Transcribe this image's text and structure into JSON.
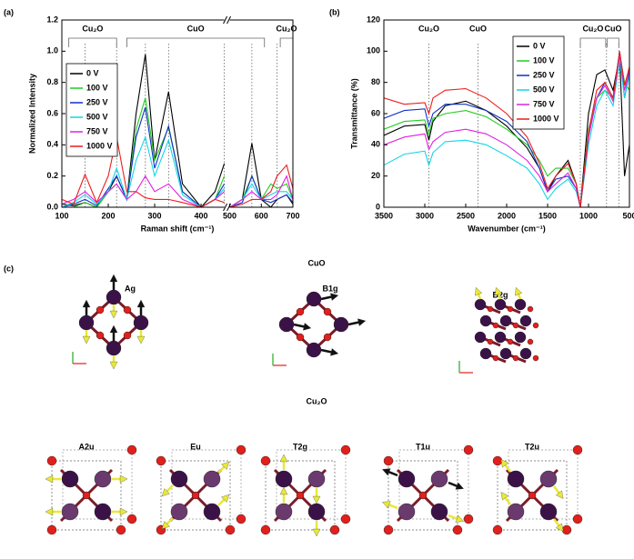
{
  "chart_data": [
    {
      "type": "line",
      "panel": "(a)",
      "x_label": "Raman shift (cm⁻¹)",
      "y_label": "Normalized Intensity",
      "xlim": [
        100,
        700
      ],
      "xbreak": [
        450,
        500
      ],
      "xticks": [
        100,
        200,
        300,
        400,
        500,
        600,
        700
      ],
      "ylim": [
        0,
        1.2
      ],
      "yticks": [
        {
          "value": 0,
          "label": "0.0"
        },
        {
          "value": 0.2,
          "label": "0.2"
        },
        {
          "value": 0.4,
          "label": "0.4"
        },
        {
          "value": 0.6,
          "label": "0.6"
        },
        {
          "value": 0.8,
          "label": "0.8"
        },
        {
          "value": 1.0,
          "label": "1.0"
        },
        {
          "value": 1.2,
          "label": "1.2"
        }
      ],
      "legend_loc": "upper left",
      "reference_lines": [
        150,
        218,
        280,
        330,
        450,
        570,
        650
      ],
      "annotations": [
        {
          "text": "Cu₂O",
          "span": [
            115,
            218
          ]
        },
        {
          "text": "CuO",
          "span": [
            240,
            610
          ]
        },
        {
          "text": "Cu₂O",
          "span": [
            660,
            700
          ]
        }
      ],
      "x": [
        100,
        125,
        150,
        175,
        200,
        218,
        240,
        260,
        280,
        300,
        330,
        360,
        400,
        430,
        450,
        500,
        540,
        570,
        600,
        630,
        650,
        680,
        700
      ],
      "series": [
        {
          "name": "0 V",
          "color": "#000000",
          "values": [
            0.02,
            0.01,
            0.03,
            0.0,
            0.1,
            0.2,
            0.05,
            0.6,
            0.98,
            0.3,
            0.74,
            0.15,
            0.0,
            0.1,
            0.28,
            0.0,
            0.05,
            0.41,
            0.05,
            0.0,
            0.05,
            0.08,
            0.02
          ]
        },
        {
          "name": "100 V",
          "color": "#22cc22",
          "values": [
            0.0,
            0.0,
            0.03,
            0.0,
            0.1,
            0.15,
            0.05,
            0.5,
            0.7,
            0.3,
            0.51,
            0.1,
            0.0,
            0.05,
            0.2,
            0.0,
            0.05,
            0.2,
            0.05,
            0.15,
            0.12,
            0.15,
            0.05
          ]
        },
        {
          "name": "250 V",
          "color": "#1030c8",
          "values": [
            0.0,
            0.02,
            0.05,
            0.01,
            0.12,
            0.2,
            0.05,
            0.45,
            0.64,
            0.25,
            0.52,
            0.1,
            0.0,
            0.05,
            0.15,
            0.0,
            0.03,
            0.2,
            0.05,
            0.03,
            0.05,
            0.08,
            0.03
          ]
        },
        {
          "name": "500 V",
          "color": "#11d6e6",
          "values": [
            0.0,
            0.03,
            0.08,
            0.02,
            0.1,
            0.25,
            0.05,
            0.3,
            0.45,
            0.2,
            0.43,
            0.08,
            0.0,
            0.05,
            0.12,
            0.0,
            0.05,
            0.15,
            0.05,
            0.08,
            0.1,
            0.1,
            0.05
          ]
        },
        {
          "name": "750 V",
          "color": "#e020e0",
          "values": [
            0.02,
            0.05,
            0.1,
            0.03,
            0.1,
            0.15,
            0.05,
            0.1,
            0.2,
            0.1,
            0.15,
            0.05,
            0.0,
            0.05,
            0.1,
            0.0,
            0.05,
            0.1,
            0.05,
            0.05,
            0.08,
            0.2,
            0.05
          ]
        },
        {
          "name": "1000 V",
          "color": "#ee1c1c",
          "values": [
            0.05,
            0.02,
            0.21,
            0.03,
            0.2,
            0.45,
            0.1,
            0.1,
            0.06,
            0.05,
            0.05,
            0.03,
            0.0,
            0.05,
            0.03,
            0.0,
            0.02,
            0.05,
            0.05,
            0.1,
            0.2,
            0.27,
            0.12
          ]
        }
      ]
    },
    {
      "type": "line",
      "panel": "(b)",
      "x_label": "Wavenumber (cm⁻¹)",
      "y_label": "Transmittance (%)",
      "xlim": [
        3500,
        500
      ],
      "xticks": [
        3500,
        3000,
        2500,
        2000,
        1500,
        1000,
        500
      ],
      "ylim": [
        0,
        120
      ],
      "yticks": [
        0,
        20,
        40,
        60,
        80,
        100,
        120
      ],
      "legend_loc": "upper right",
      "reference_lines": [
        2950,
        2350,
        1100,
        780,
        630
      ],
      "annotations": [
        {
          "text": "Cu₂O",
          "span": [
            2950,
            2950
          ]
        },
        {
          "text": "CuO",
          "span": [
            2350,
            2350
          ]
        },
        {
          "text": "Cu₂O",
          "span": [
            1100,
            790
          ]
        },
        {
          "text": "CuO",
          "span": [
            770,
            630
          ]
        }
      ],
      "x": [
        3500,
        3250,
        3000,
        2950,
        2900,
        2750,
        2500,
        2250,
        2000,
        1750,
        1600,
        1500,
        1400,
        1250,
        1150,
        1100,
        1000,
        900,
        800,
        700,
        620,
        560,
        500
      ],
      "series": [
        {
          "name": "0 V",
          "color": "#000000",
          "values": [
            46,
            52,
            53,
            43,
            55,
            65,
            68,
            62,
            52,
            38,
            25,
            10,
            20,
            30,
            15,
            0,
            60,
            85,
            88,
            75,
            97,
            20,
            40
          ]
        },
        {
          "name": "100 V",
          "color": "#22cc22",
          "values": [
            50,
            55,
            56,
            47,
            57,
            60,
            62,
            58,
            50,
            40,
            30,
            20,
            25,
            25,
            15,
            0,
            50,
            70,
            75,
            70,
            99,
            80,
            75
          ]
        },
        {
          "name": "250 V",
          "color": "#1030c8",
          "values": [
            57,
            62,
            63,
            52,
            60,
            66,
            66,
            62,
            55,
            42,
            25,
            10,
            18,
            20,
            12,
            0,
            45,
            70,
            80,
            70,
            100,
            70,
            87
          ]
        },
        {
          "name": "500 V",
          "color": "#11d6e6",
          "values": [
            27,
            34,
            36,
            27,
            35,
            42,
            43,
            40,
            33,
            25,
            15,
            5,
            12,
            18,
            10,
            0,
            40,
            65,
            75,
            65,
            95,
            70,
            85
          ]
        },
        {
          "name": "750 V",
          "color": "#e020e0",
          "values": [
            40,
            45,
            47,
            37,
            42,
            48,
            50,
            47,
            40,
            30,
            20,
            10,
            15,
            22,
            12,
            0,
            45,
            70,
            78,
            68,
            98,
            75,
            88
          ]
        },
        {
          "name": "1000 V",
          "color": "#ee1c1c",
          "values": [
            70,
            66,
            67,
            60,
            70,
            75,
            76,
            70,
            60,
            45,
            28,
            12,
            20,
            28,
            15,
            0,
            48,
            75,
            80,
            70,
            100,
            78,
            90
          ]
        }
      ]
    }
  ],
  "panel_c": {
    "label": "(c)",
    "cuo_title": "CuO",
    "cu2o_title": "Cu₂O",
    "cuo_modes": [
      "Ag",
      "B1g",
      "B2g"
    ],
    "cu2o_modes": [
      "A2u",
      "Eu",
      "T2g",
      "T1u",
      "T2u"
    ]
  }
}
